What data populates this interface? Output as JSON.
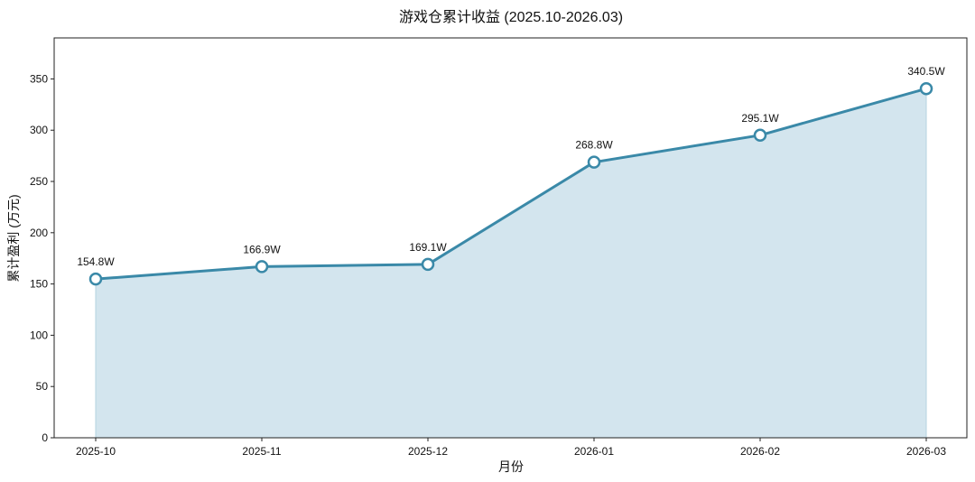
{
  "chart_data": {
    "type": "line",
    "title": "游戏仓累计收益 (2025.10-2026.03)",
    "xlabel": "月份",
    "ylabel": "累计盈利 (万元)",
    "categories": [
      "2025-10",
      "2025-11",
      "2025-12",
      "2026-01",
      "2026-02",
      "2026-03"
    ],
    "series": [
      {
        "values": [
          154.8,
          166.9,
          169.1,
          268.8,
          295.1,
          340.5
        ],
        "data_labels": [
          "154.8W",
          "166.9W",
          "169.1W",
          "268.8W",
          "295.1W",
          "340.5W"
        ]
      }
    ],
    "ylim": [
      0,
      390
    ],
    "yticks": [
      0,
      50,
      100,
      150,
      200,
      250,
      300,
      350
    ],
    "grid": false,
    "area_fill": true,
    "colors": {
      "line": "#3a89a8",
      "area": "#d3e5ee",
      "marker_fill": "#ffffff"
    }
  }
}
